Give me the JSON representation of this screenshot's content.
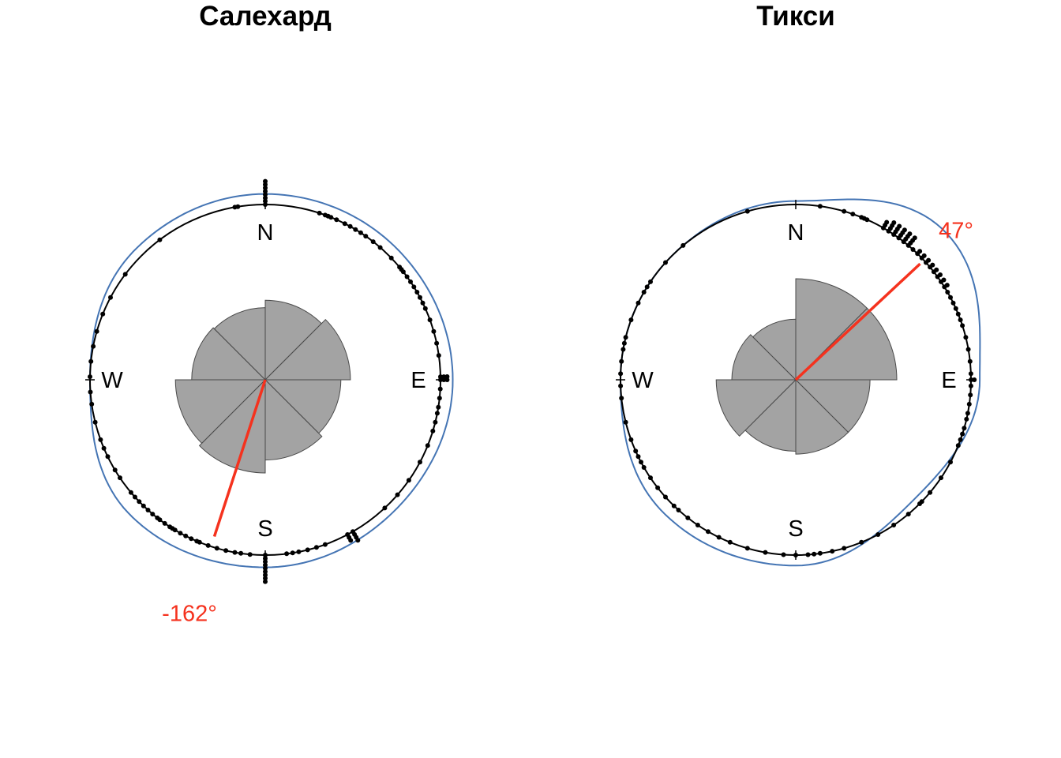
{
  "colors": {
    "rose_fill": "#a3a3a3",
    "rose_stroke": "#4a4a4a",
    "circle": "#000000",
    "points": "#000000",
    "density": "#4575b4",
    "mean": "#f5321e"
  },
  "chart_data": [
    {
      "type": "circular",
      "title": "Салехард",
      "compass_labels": [
        "N",
        "E",
        "S",
        "W"
      ],
      "rose_bins_deg": [
        0,
        45,
        90,
        135,
        180,
        225,
        270,
        315
      ],
      "rose_counts": [
        0.62,
        0.71,
        0.56,
        0.63,
        0.85,
        0.79,
        0.53,
        0.51
      ],
      "mean_direction_deg": -162,
      "mean_resultant_length": 0.94,
      "mean_label": "-162°",
      "observations_deg": [
        0,
        0,
        0,
        0,
        0,
        0,
        0,
        0,
        -10,
        -9,
        18,
        20,
        21,
        22,
        24,
        27,
        29,
        31,
        33,
        35,
        38,
        41,
        46,
        50,
        51,
        52,
        54,
        56,
        58,
        60,
        62,
        64,
        66,
        70,
        74,
        78,
        82,
        89,
        89,
        89,
        90,
        90,
        90,
        93,
        96,
        99,
        101,
        104,
        107,
        112,
        118,
        125,
        131,
        137,
        150,
        150,
        150,
        150,
        152,
        152,
        152,
        160,
        163,
        166,
        169,
        171,
        173,
        180,
        180,
        180,
        180,
        180,
        180,
        180,
        180,
        180,
        185,
        188,
        190,
        193,
        196,
        199,
        202,
        203,
        205,
        207,
        209,
        211,
        212,
        213,
        215,
        217,
        218,
        220,
        222,
        224,
        226,
        228,
        230,
        236,
        239,
        244,
        247,
        250,
        256,
        262,
        266,
        271,
        276,
        281,
        286,
        292,
        298,
        307,
        323
      ],
      "density_radius": [
        [
          0,
          1.06
        ],
        [
          45,
          1.06
        ],
        [
          90,
          1.07
        ],
        [
          135,
          1.05
        ],
        [
          180,
          1.07
        ],
        [
          225,
          1.09
        ],
        [
          270,
          1.0
        ],
        [
          315,
          1.05
        ]
      ]
    },
    {
      "type": "circular",
      "title": "Тикси",
      "compass_labels": [
        "N",
        "E",
        "S",
        "W"
      ],
      "rose_bins_deg": [
        0,
        45,
        90,
        135,
        180,
        225,
        270,
        315
      ],
      "rose_counts": [
        1.0,
        1.0,
        0.54,
        0.54,
        0.5,
        0.62,
        0.4,
        0.36
      ],
      "mean_direction_deg": 47,
      "mean_resultant_length": 0.97,
      "mean_label": "47°",
      "observations_deg": [
        -40,
        -16,
        8,
        16,
        19,
        22,
        23,
        24,
        30,
        30,
        30,
        32,
        32,
        32,
        32,
        34,
        34,
        34,
        34,
        36,
        36,
        36,
        36,
        38,
        38,
        38,
        38,
        40,
        40,
        40,
        40,
        42,
        44,
        44,
        46,
        46,
        48,
        48,
        50,
        50,
        52,
        52,
        54,
        54,
        56,
        56,
        58,
        58,
        60,
        62,
        64,
        66,
        68,
        70,
        72,
        76,
        80,
        84,
        88,
        90,
        90,
        92,
        95,
        98,
        101,
        103,
        106,
        108,
        110,
        112,
        118,
        124,
        130,
        134,
        135,
        140,
        146,
        152,
        158,
        164,
        168,
        172,
        174,
        176,
        180,
        184,
        190,
        196,
        202,
        206,
        210,
        214,
        218,
        222,
        224,
        228,
        232,
        236,
        240,
        242,
        244,
        246,
        250,
        256,
        264,
        268,
        272,
        276,
        280,
        282,
        284,
        290,
        296,
        300,
        302,
        304,
        312
      ],
      "density_radius": [
        [
          0,
          1.02
        ],
        [
          45,
          1.2
        ],
        [
          90,
          1.05
        ],
        [
          135,
          0.96
        ],
        [
          180,
          1.06
        ],
        [
          225,
          1.07
        ],
        [
          270,
          1.0
        ],
        [
          315,
          1.0
        ]
      ]
    }
  ]
}
